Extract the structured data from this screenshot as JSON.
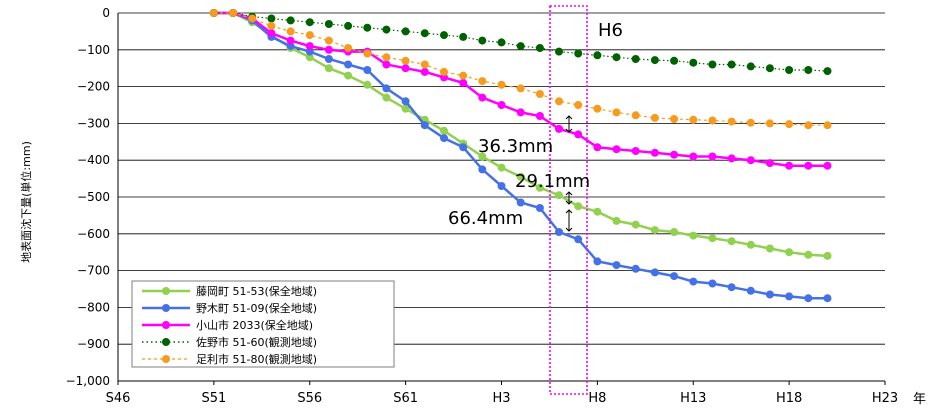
{
  "chart_data": {
    "type": "line",
    "title": "",
    "xlabel": "年",
    "ylabel": "地表面沈下量(単位:mm)",
    "ylim": [
      -1000,
      0
    ],
    "xlim": [
      46,
      23
    ],
    "x_tick_labels": [
      "S46",
      "S51",
      "S56",
      "S61",
      "H3",
      "H8",
      "H13",
      "H18",
      "H23"
    ],
    "y_tick_labels": [
      "0",
      "−100",
      "−200",
      "−300",
      "−400",
      "−500",
      "−600",
      "−700",
      "−800",
      "−900",
      "−1,000"
    ],
    "y_ticks": [
      0,
      -100,
      -200,
      -300,
      -400,
      -500,
      -600,
      -700,
      -800,
      -900,
      -1000
    ],
    "grid": "horizontal",
    "legend_position": "bottom-left",
    "series": [
      {
        "name": "藤岡町 51-53(保全地域)",
        "color": "#92d050",
        "style": "solid",
        "points": [
          [
            1976,
            0
          ],
          [
            1977,
            0
          ],
          [
            1978,
            -25
          ],
          [
            1979,
            -60
          ],
          [
            1980,
            -95
          ],
          [
            1981,
            -120
          ],
          [
            1982,
            -150
          ],
          [
            1983,
            -170
          ],
          [
            1984,
            -195
          ],
          [
            1985,
            -230
          ],
          [
            1986,
            -260
          ],
          [
            1987,
            -290
          ],
          [
            1988,
            -320
          ],
          [
            1989,
            -355
          ],
          [
            1990,
            -390
          ],
          [
            1991,
            -420
          ],
          [
            1992,
            -445
          ],
          [
            1993,
            -475
          ],
          [
            1994,
            -495
          ],
          [
            1995,
            -525
          ],
          [
            1996,
            -540
          ],
          [
            1997,
            -565
          ],
          [
            1998,
            -575
          ],
          [
            1999,
            -590
          ],
          [
            2000,
            -595
          ],
          [
            2001,
            -605
          ],
          [
            2002,
            -612
          ],
          [
            2003,
            -620
          ],
          [
            2004,
            -630
          ],
          [
            2005,
            -640
          ],
          [
            2006,
            -650
          ],
          [
            2007,
            -657
          ],
          [
            2008,
            -660
          ]
        ]
      },
      {
        "name": "野木町 51-09(保全地域)",
        "color": "#4472e6",
        "style": "solid",
        "points": [
          [
            1976,
            0
          ],
          [
            1977,
            0
          ],
          [
            1978,
            -20
          ],
          [
            1979,
            -65
          ],
          [
            1980,
            -90
          ],
          [
            1981,
            -105
          ],
          [
            1982,
            -125
          ],
          [
            1983,
            -140
          ],
          [
            1984,
            -155
          ],
          [
            1985,
            -205
          ],
          [
            1986,
            -240
          ],
          [
            1987,
            -305
          ],
          [
            1988,
            -340
          ],
          [
            1989,
            -365
          ],
          [
            1990,
            -425
          ],
          [
            1991,
            -470
          ],
          [
            1992,
            -515
          ],
          [
            1993,
            -530
          ],
          [
            1994,
            -595
          ],
          [
            1995,
            -615
          ],
          [
            1996,
            -675
          ],
          [
            1997,
            -685
          ],
          [
            1998,
            -695
          ],
          [
            1999,
            -705
          ],
          [
            2000,
            -715
          ],
          [
            2001,
            -730
          ],
          [
            2002,
            -735
          ],
          [
            2003,
            -745
          ],
          [
            2004,
            -755
          ],
          [
            2005,
            -765
          ],
          [
            2006,
            -770
          ],
          [
            2007,
            -775
          ],
          [
            2008,
            -775
          ]
        ]
      },
      {
        "name": "小山市 2033(保全地域)",
        "color": "#ff00ff",
        "style": "solid",
        "points": [
          [
            1976,
            0
          ],
          [
            1977,
            0
          ],
          [
            1978,
            -15
          ],
          [
            1979,
            -55
          ],
          [
            1980,
            -75
          ],
          [
            1981,
            -90
          ],
          [
            1982,
            -100
          ],
          [
            1983,
            -105
          ],
          [
            1984,
            -105
          ],
          [
            1985,
            -140
          ],
          [
            1986,
            -150
          ],
          [
            1987,
            -160
          ],
          [
            1988,
            -175
          ],
          [
            1989,
            -190
          ],
          [
            1990,
            -230
          ],
          [
            1991,
            -250
          ],
          [
            1992,
            -270
          ],
          [
            1993,
            -280
          ],
          [
            1994,
            -315
          ],
          [
            1995,
            -330
          ],
          [
            1996,
            -365
          ],
          [
            1997,
            -370
          ],
          [
            1998,
            -375
          ],
          [
            1999,
            -380
          ],
          [
            2000,
            -385
          ],
          [
            2001,
            -390
          ],
          [
            2002,
            -390
          ],
          [
            2003,
            -395
          ],
          [
            2004,
            -400
          ],
          [
            2005,
            -408
          ],
          [
            2006,
            -415
          ],
          [
            2007,
            -415
          ],
          [
            2008,
            -415
          ]
        ]
      },
      {
        "name": "佐野市 51-60(観測地域)",
        "color": "#006100",
        "style": "dotted",
        "points": [
          [
            1976,
            0
          ],
          [
            1977,
            0
          ],
          [
            1978,
            -10
          ],
          [
            1979,
            -15
          ],
          [
            1980,
            -20
          ],
          [
            1981,
            -25
          ],
          [
            1982,
            -30
          ],
          [
            1983,
            -35
          ],
          [
            1984,
            -40
          ],
          [
            1985,
            -45
          ],
          [
            1986,
            -50
          ],
          [
            1987,
            -55
          ],
          [
            1988,
            -60
          ],
          [
            1989,
            -65
          ],
          [
            1990,
            -75
          ],
          [
            1991,
            -80
          ],
          [
            1992,
            -90
          ],
          [
            1993,
            -95
          ],
          [
            1994,
            -105
          ],
          [
            1995,
            -110
          ],
          [
            1996,
            -115
          ],
          [
            1997,
            -120
          ],
          [
            1998,
            -125
          ],
          [
            1999,
            -128
          ],
          [
            2000,
            -130
          ],
          [
            2001,
            -135
          ],
          [
            2002,
            -140
          ],
          [
            2003,
            -140
          ],
          [
            2004,
            -145
          ],
          [
            2005,
            -150
          ],
          [
            2006,
            -155
          ],
          [
            2007,
            -155
          ],
          [
            2008,
            -158
          ]
        ]
      },
      {
        "name": "足利市 51-80(観測地域)",
        "color": "#f79b1e",
        "style": "dashed",
        "points": [
          [
            1976,
            0
          ],
          [
            1977,
            0
          ],
          [
            1978,
            -15
          ],
          [
            1979,
            -35
          ],
          [
            1980,
            -50
          ],
          [
            1981,
            -60
          ],
          [
            1982,
            -75
          ],
          [
            1983,
            -95
          ],
          [
            1984,
            -110
          ],
          [
            1985,
            -120
          ],
          [
            1986,
            -130
          ],
          [
            1987,
            -140
          ],
          [
            1988,
            -160
          ],
          [
            1989,
            -170
          ],
          [
            1990,
            -185
          ],
          [
            1991,
            -195
          ],
          [
            1992,
            -205
          ],
          [
            1993,
            -220
          ],
          [
            1994,
            -240
          ],
          [
            1995,
            -250
          ],
          [
            1996,
            -260
          ],
          [
            1997,
            -270
          ],
          [
            1998,
            -278
          ],
          [
            1999,
            -285
          ],
          [
            2000,
            -288
          ],
          [
            2001,
            -290
          ],
          [
            2002,
            -292
          ],
          [
            2003,
            -295
          ],
          [
            2004,
            -298
          ],
          [
            2005,
            -300
          ],
          [
            2006,
            -302
          ],
          [
            2007,
            -305
          ],
          [
            2008,
            -305
          ]
        ]
      }
    ],
    "annotations": [
      "H6",
      "36.3mm",
      "29.1mm",
      "66.4mm"
    ]
  }
}
